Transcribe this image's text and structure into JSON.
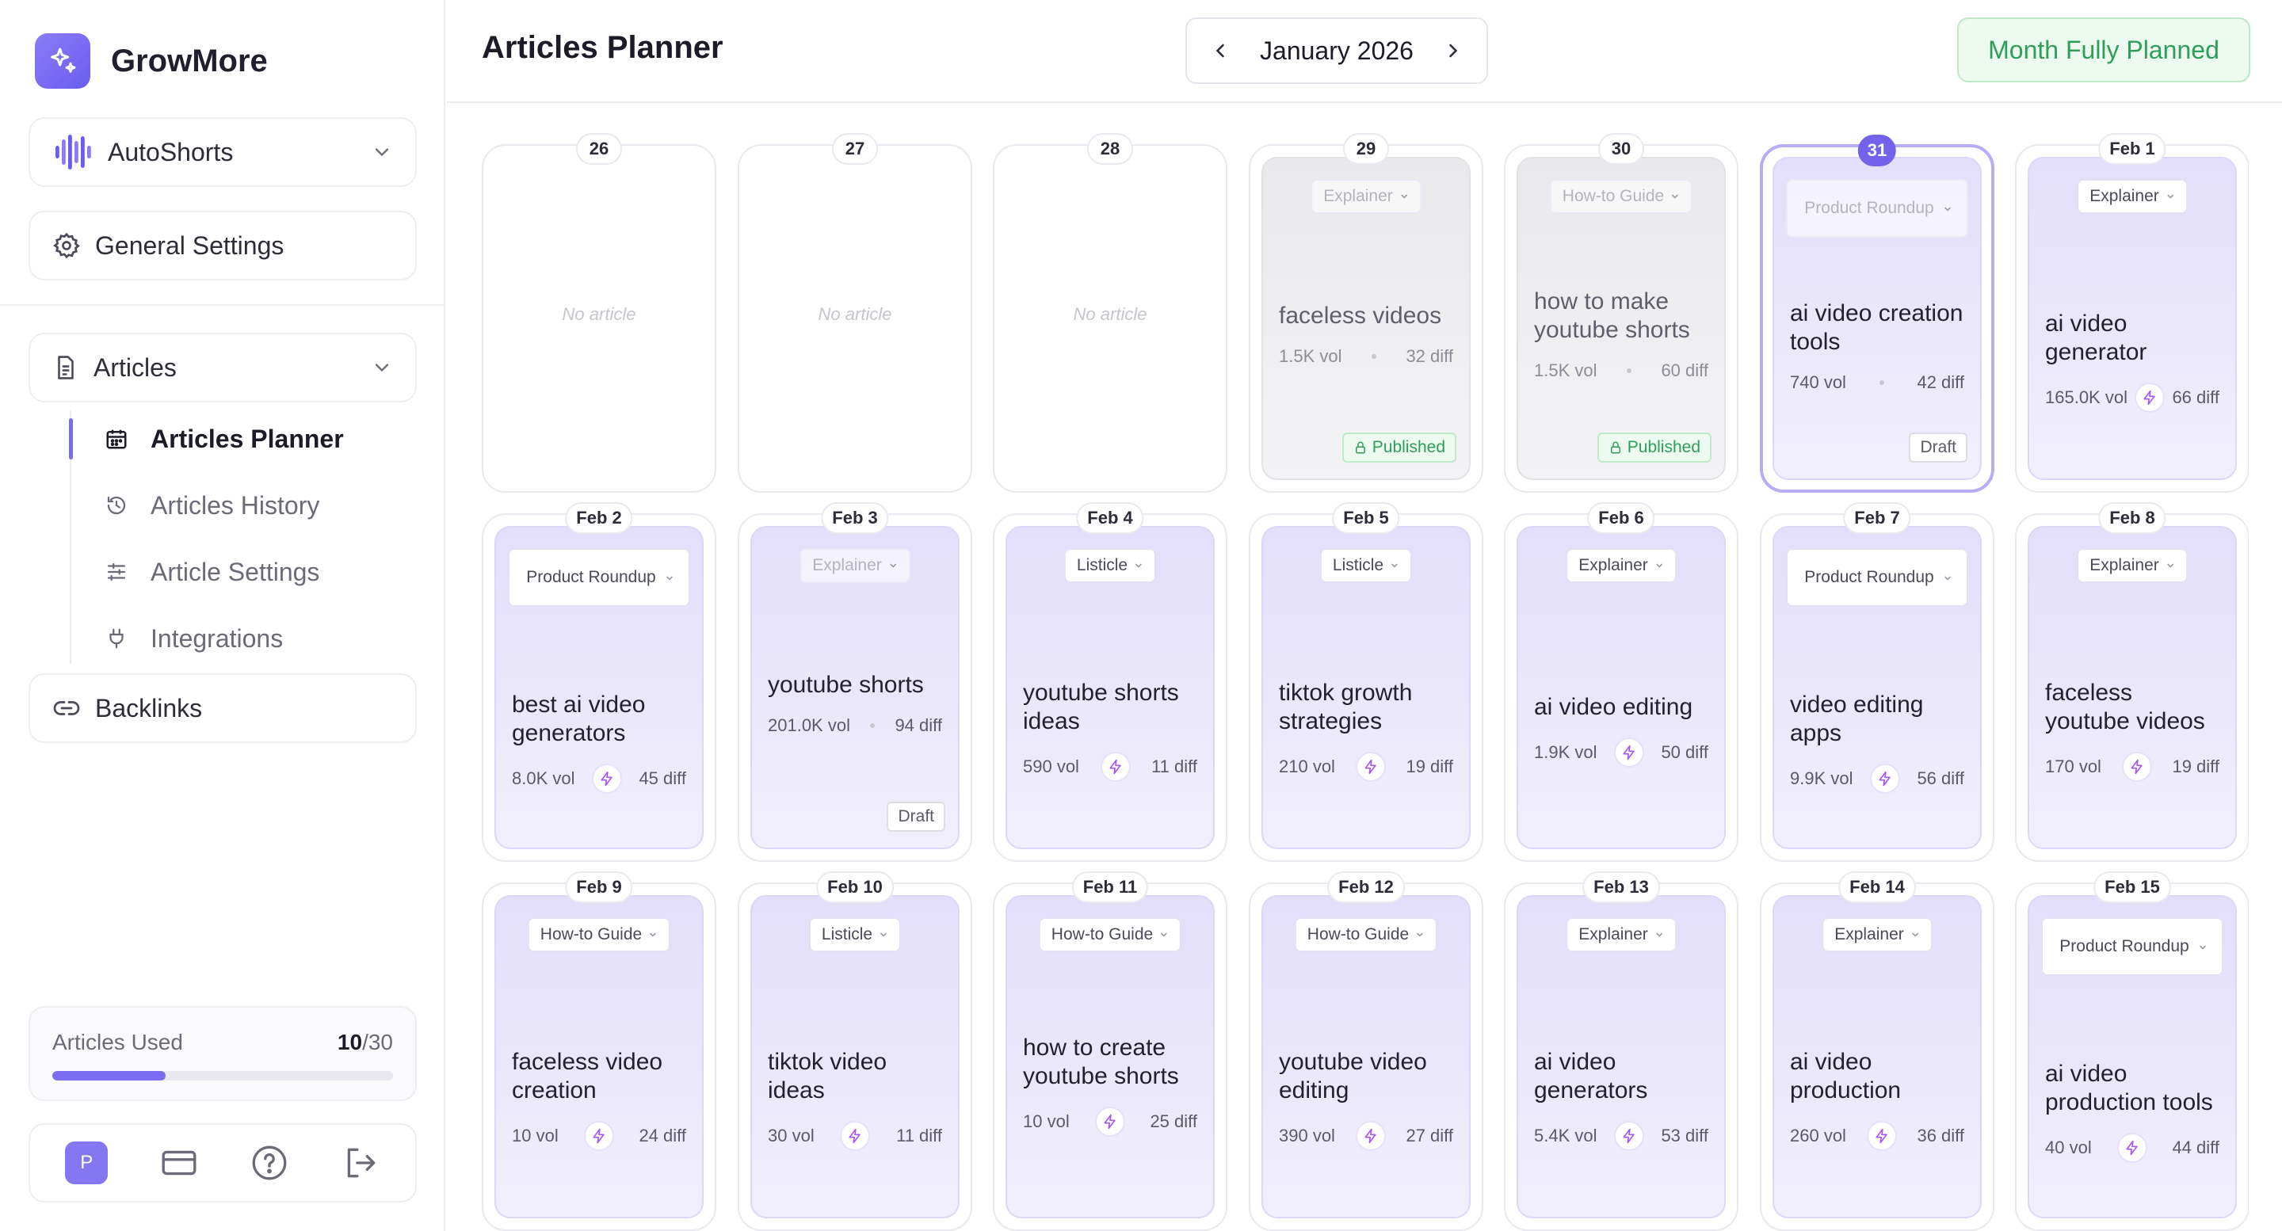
{
  "brand": {
    "name": "GrowMore"
  },
  "sidebar": {
    "workspace": "AutoShorts",
    "general_settings": "General Settings",
    "articles": "Articles",
    "sub_items": [
      {
        "label": "Articles Planner",
        "icon": "calendar-icon",
        "active": true
      },
      {
        "label": "Articles History",
        "icon": "history-icon",
        "active": false
      },
      {
        "label": "Article Settings",
        "icon": "sliders-icon",
        "active": false
      },
      {
        "label": "Integrations",
        "icon": "plug-icon",
        "active": false
      }
    ],
    "backlinks": "Backlinks",
    "usage": {
      "label": "Articles Used",
      "used": "10",
      "total": "/30",
      "fraction": 0.333
    },
    "avatar_initial": "P"
  },
  "header": {
    "title": "Articles Planner",
    "month": "January 2026",
    "status": "Month Fully Planned"
  },
  "days": [
    {
      "date": "26",
      "empty": true,
      "empty_text": "No article"
    },
    {
      "date": "27",
      "empty": true,
      "empty_text": "No article"
    },
    {
      "date": "28",
      "empty": true,
      "empty_text": "No article"
    },
    {
      "date": "29",
      "type": "Explainer",
      "keyword": "faceless videos",
      "vol": "1.5K vol",
      "diff": "32 diff",
      "status": "Published"
    },
    {
      "date": "30",
      "type": "How-to Guide",
      "keyword": "how to make youtube shorts",
      "vol": "1.5K vol",
      "diff": "60 diff",
      "status": "Published"
    },
    {
      "date": "31",
      "type": "Product Roundup",
      "keyword": "ai video creation tools",
      "vol": "740 vol",
      "diff": "42 diff",
      "status": "Draft",
      "selected": true
    },
    {
      "date": "Feb 1",
      "type": "Explainer",
      "keyword": "ai video generator",
      "vol": "165.0K vol",
      "diff": "66 diff"
    },
    {
      "date": "Feb 2",
      "type": "Product Roundup",
      "keyword": "best ai video generators",
      "vol": "8.0K vol",
      "diff": "45 diff"
    },
    {
      "date": "Feb 3",
      "type": "Explainer",
      "keyword": "youtube shorts",
      "vol": "201.0K vol",
      "diff": "94 diff",
      "status": "Draft"
    },
    {
      "date": "Feb 4",
      "type": "Listicle",
      "keyword": "youtube shorts ideas",
      "vol": "590 vol",
      "diff": "11 diff"
    },
    {
      "date": "Feb 5",
      "type": "Listicle",
      "keyword": "tiktok growth strategies",
      "vol": "210 vol",
      "diff": "19 diff"
    },
    {
      "date": "Feb 6",
      "type": "Explainer",
      "keyword": "ai video editing",
      "vol": "1.9K vol",
      "diff": "50 diff"
    },
    {
      "date": "Feb 7",
      "type": "Product Roundup",
      "keyword": "video editing apps",
      "vol": "9.9K vol",
      "diff": "56 diff"
    },
    {
      "date": "Feb 8",
      "type": "Explainer",
      "keyword": "faceless youtube videos",
      "vol": "170 vol",
      "diff": "19 diff"
    },
    {
      "date": "Feb 9",
      "type": "How-to Guide",
      "keyword": "faceless video creation",
      "vol": "10 vol",
      "diff": "24 diff"
    },
    {
      "date": "Feb 10",
      "type": "Listicle",
      "keyword": "tiktok video ideas",
      "vol": "30 vol",
      "diff": "11 diff"
    },
    {
      "date": "Feb 11",
      "type": "How-to Guide",
      "keyword": "how to create youtube shorts",
      "vol": "10 vol",
      "diff": "25 diff"
    },
    {
      "date": "Feb 12",
      "type": "How-to Guide",
      "keyword": "youtube video editing",
      "vol": "390 vol",
      "diff": "27 diff"
    },
    {
      "date": "Feb 13",
      "type": "Explainer",
      "keyword": "ai video generators",
      "vol": "5.4K vol",
      "diff": "53 diff"
    },
    {
      "date": "Feb 14",
      "type": "Explainer",
      "keyword": "ai video production",
      "vol": "260 vol",
      "diff": "36 diff"
    },
    {
      "date": "Feb 15",
      "type": "Product Roundup",
      "keyword": "ai video production tools",
      "vol": "40 vol",
      "diff": "44 diff"
    }
  ]
}
